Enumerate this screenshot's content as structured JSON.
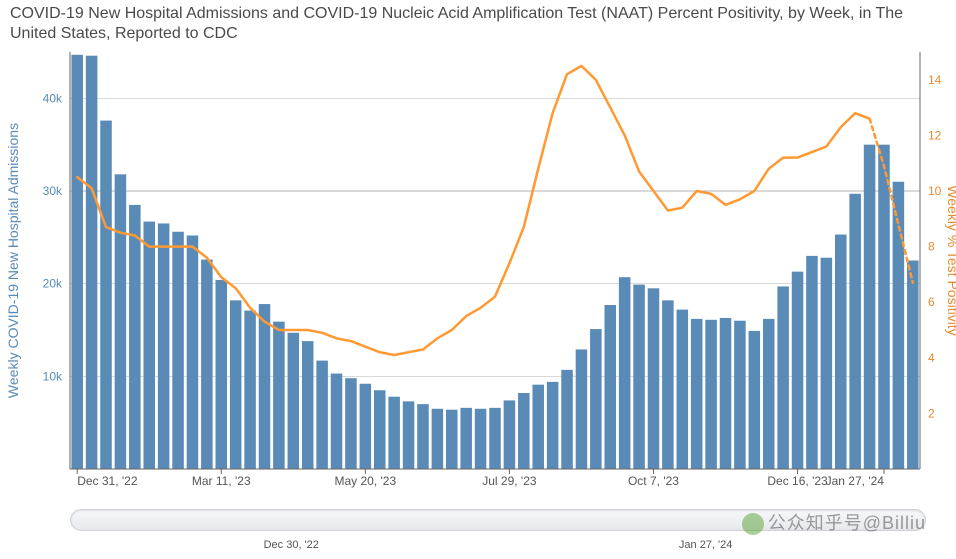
{
  "title": "COVID-19 New Hospital Admissions and COVID-19 Nucleic Acid Amplification Test (NAAT) Percent Positivity, by Week, in The United States, Reported to CDC",
  "chart": {
    "type": "bar+line",
    "background_color": "#ffffff",
    "grid_color": "#b3b3b3",
    "yaxis_left": {
      "title": "Weekly COVID-19 New Hospital Admissions",
      "title_fontsize": 14,
      "color": "#5a8bb7",
      "ylim": [
        0,
        45000
      ],
      "ticks": [
        {
          "v": 10000,
          "label": "10k"
        },
        {
          "v": 20000,
          "label": "20k"
        },
        {
          "v": 30000,
          "label": "30k"
        },
        {
          "v": 40000,
          "label": "40k"
        }
      ]
    },
    "yaxis_right": {
      "title": "Weekly % Test Positivity",
      "title_fontsize": 14,
      "color": "#e78a2e",
      "ylim": [
        0,
        15
      ],
      "ticks": [
        {
          "v": 2,
          "label": "2"
        },
        {
          "v": 4,
          "label": "4"
        },
        {
          "v": 6,
          "label": "6"
        },
        {
          "v": 8,
          "label": "8"
        },
        {
          "v": 10,
          "label": "10"
        },
        {
          "v": 12,
          "label": "12"
        },
        {
          "v": 14,
          "label": "14"
        }
      ]
    },
    "xaxis": {
      "ticks": [
        {
          "idx": 0,
          "label": "Dec 31, '22"
        },
        {
          "idx": 10,
          "label": "Mar 11, '23"
        },
        {
          "idx": 20,
          "label": "May 20, '23"
        },
        {
          "idx": 30,
          "label": "Jul 29, '23"
        },
        {
          "idx": 40,
          "label": "Oct 7, '23"
        },
        {
          "idx": 50,
          "label": "Dec 16, '23"
        },
        {
          "idx": 56,
          "label": "Jan 27, '24"
        }
      ]
    },
    "bars": {
      "color": "#5a8bb7",
      "opacity": 1,
      "width_frac": 0.8,
      "values": [
        44700,
        44600,
        37600,
        31800,
        28500,
        26700,
        26500,
        25600,
        25200,
        22600,
        20400,
        18200,
        17100,
        17800,
        15900,
        14700,
        13800,
        11700,
        10300,
        9800,
        9200,
        8500,
        7800,
        7300,
        7000,
        6500,
        6400,
        6600,
        6500,
        6600,
        7400,
        8200,
        9100,
        9400,
        10700,
        12900,
        15100,
        17700,
        20700,
        19900,
        19500,
        18200,
        17200,
        16200,
        16100,
        16300,
        16000,
        14900,
        16200,
        19700,
        21300,
        23000,
        22800,
        25300,
        29700,
        35000,
        35000,
        31000,
        22500
      ]
    },
    "line": {
      "color": "#ff9933",
      "width": 2.5,
      "dashed_tail_count": 3,
      "values": [
        10.5,
        10.1,
        8.7,
        8.5,
        8.4,
        8.0,
        8.0,
        8.0,
        8.0,
        7.6,
        6.9,
        6.5,
        5.8,
        5.3,
        5.0,
        5.0,
        5.0,
        4.9,
        4.7,
        4.6,
        4.4,
        4.2,
        4.1,
        4.2,
        4.3,
        4.7,
        5.0,
        5.5,
        5.8,
        6.2,
        7.4,
        8.7,
        10.8,
        12.8,
        14.2,
        14.5,
        14.0,
        13.0,
        12.0,
        10.7,
        10.0,
        9.3,
        9.4,
        10.0,
        9.9,
        9.5,
        9.7,
        10.0,
        10.8,
        11.2,
        11.2,
        11.4,
        11.6,
        12.3,
        12.8,
        12.6,
        10.9,
        8.8,
        6.7
      ]
    }
  },
  "slider": {
    "label_left": "Dec 30, '22",
    "label_right": "Jan 27, '24"
  },
  "watermark": "公众知乎号@Billiu"
}
